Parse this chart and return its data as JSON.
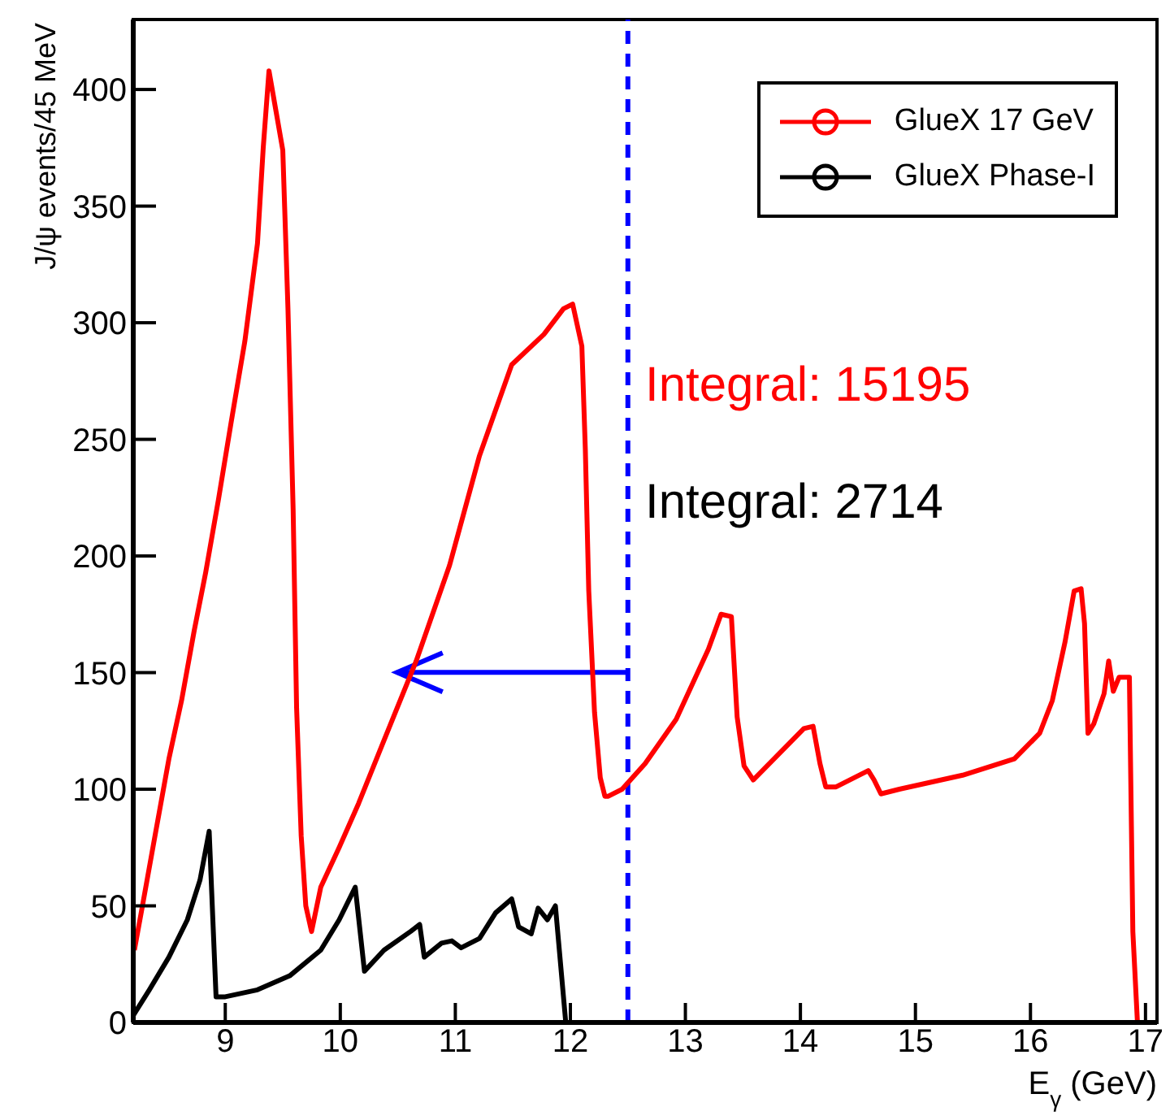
{
  "chart_data": {
    "type": "line",
    "xlabel": "E$_{γ}$ (GeV)",
    "ylabel": "J/ψ events/45 MeV",
    "xlim": [
      8.2,
      17.1
    ],
    "xticks": [
      9,
      10,
      11,
      12,
      13,
      14,
      15,
      16,
      17
    ],
    "ylim": [
      0,
      430
    ],
    "yticks": [
      0,
      50,
      100,
      150,
      200,
      250,
      300,
      350,
      400
    ],
    "grid": false,
    "legend": "top right",
    "annotations": [
      "Integral: 15195",
      "Integral: 2714"
    ],
    "ref_lines": [
      {
        "axis": "x",
        "value": 12.5,
        "color": "#0000ff",
        "line_style": "dashed"
      }
    ],
    "series": [
      {
        "name": "GlueX 17 GeV",
        "color": "#ff0000",
        "x": [
          8.21,
          8.28,
          8.4,
          8.51,
          8.62,
          8.73,
          8.83,
          8.94,
          9.05,
          9.17,
          9.28,
          9.33,
          9.38,
          9.5,
          9.545,
          9.59,
          9.62,
          9.66,
          9.7,
          9.75,
          9.83,
          9.99,
          10.16,
          10.38,
          10.66,
          10.95,
          11.21,
          11.49,
          11.77,
          11.94,
          12.02,
          12.1,
          12.13,
          12.16,
          12.21,
          12.26,
          12.3,
          12.33,
          12.45,
          12.65,
          12.92,
          13.2,
          13.31,
          13.4,
          13.45,
          13.51,
          13.59,
          13.75,
          14.03,
          14.11,
          14.17,
          14.22,
          14.31,
          14.59,
          14.64,
          14.7,
          14.86,
          15.41,
          15.86,
          16.08,
          16.19,
          16.3,
          16.38,
          16.44,
          16.47,
          16.5,
          16.55,
          16.64,
          16.68,
          16.72,
          16.77,
          16.86,
          16.89,
          16.93,
          17.1
        ],
        "values": [
          31,
          50,
          83,
          113,
          138,
          168,
          193,
          224,
          257,
          292,
          334,
          375,
          408,
          374,
          306,
          220,
          135,
          80,
          50,
          39,
          58,
          75,
          94,
          121,
          155,
          196,
          243,
          282,
          295,
          306,
          308,
          290,
          246,
          185,
          133,
          105,
          97,
          97,
          100,
          111,
          130,
          160,
          175,
          174,
          131,
          110,
          104,
          112,
          126,
          127,
          111,
          101,
          101,
          108,
          104,
          98,
          100,
          106,
          113,
          124,
          138,
          163,
          185,
          186,
          171,
          124,
          128,
          141,
          155,
          142,
          148,
          148,
          39,
          0,
          0
        ]
      },
      {
        "name": "GlueX Phase-I",
        "color": "#000000",
        "x": [
          8.2,
          8.34,
          8.51,
          8.67,
          8.78,
          8.86,
          8.92,
          9.0,
          9.28,
          9.56,
          9.83,
          9.99,
          10.13,
          10.21,
          10.38,
          10.61,
          10.69,
          10.73,
          10.88,
          10.97,
          11.05,
          11.21,
          11.35,
          11.49,
          11.55,
          11.66,
          11.72,
          11.8,
          11.87,
          11.96,
          17.1
        ],
        "values": [
          3,
          14,
          28,
          44,
          61,
          82,
          11,
          11,
          14,
          20,
          31,
          44,
          58,
          22,
          31,
          39,
          42,
          28,
          34,
          35,
          32,
          36,
          47,
          53,
          41,
          38,
          49,
          44,
          50,
          0,
          0
        ]
      }
    ]
  }
}
